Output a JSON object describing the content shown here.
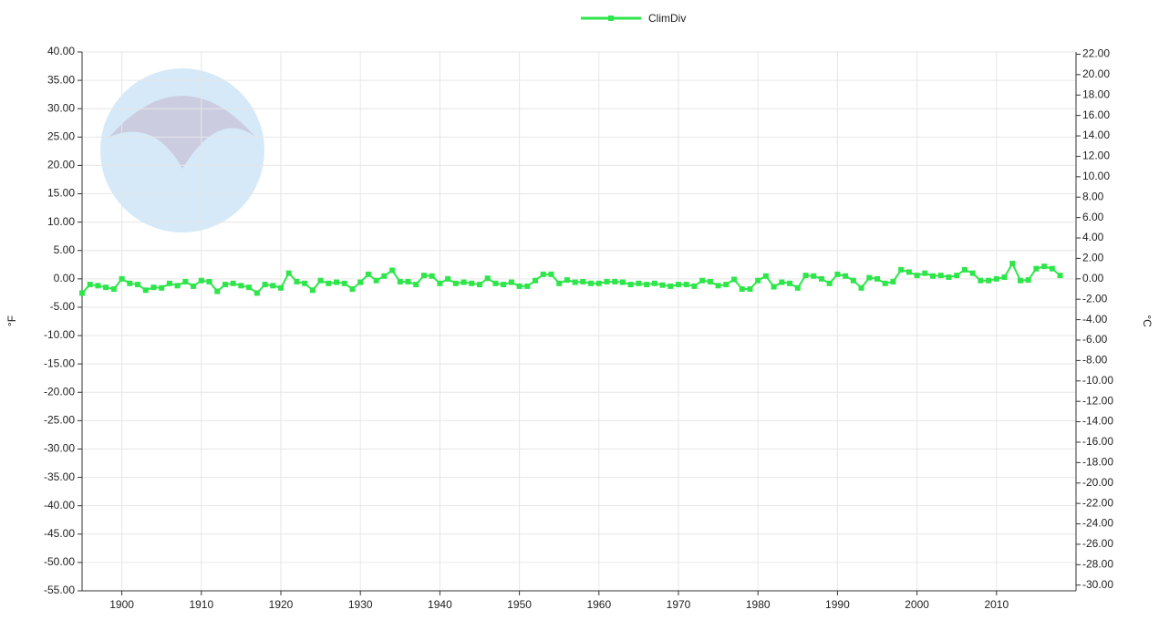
{
  "chart_data": {
    "type": "line",
    "legend_position": "top",
    "grid": true,
    "y_label": "°F",
    "y2_label": "°C",
    "x": [
      1895,
      1896,
      1897,
      1898,
      1899,
      1900,
      1901,
      1902,
      1903,
      1904,
      1905,
      1906,
      1907,
      1908,
      1909,
      1910,
      1911,
      1912,
      1913,
      1914,
      1915,
      1916,
      1917,
      1918,
      1919,
      1920,
      1921,
      1922,
      1923,
      1924,
      1925,
      1926,
      1927,
      1928,
      1929,
      1930,
      1931,
      1932,
      1933,
      1934,
      1935,
      1936,
      1937,
      1938,
      1939,
      1940,
      1941,
      1942,
      1943,
      1944,
      1945,
      1946,
      1947,
      1948,
      1949,
      1950,
      1951,
      1952,
      1953,
      1954,
      1955,
      1956,
      1957,
      1958,
      1959,
      1960,
      1961,
      1962,
      1963,
      1964,
      1965,
      1966,
      1967,
      1968,
      1969,
      1970,
      1971,
      1972,
      1973,
      1974,
      1975,
      1976,
      1977,
      1978,
      1979,
      1980,
      1981,
      1982,
      1983,
      1984,
      1985,
      1986,
      1987,
      1988,
      1989,
      1990,
      1991,
      1992,
      1993,
      1994,
      1995,
      1996,
      1997,
      1998,
      1999,
      2000,
      2001,
      2002,
      2003,
      2004,
      2005,
      2006,
      2007,
      2008,
      2009,
      2010,
      2011,
      2012,
      2013,
      2014,
      2015,
      2016,
      2017,
      2018
    ],
    "series": [
      {
        "name": "ClimDiv",
        "color": "#2ee64a",
        "values": [
          -2.5,
          -1,
          -1.2,
          -1.5,
          -1.8,
          0,
          -0.8,
          -1,
          -2,
          -1.5,
          -1.6,
          -0.8,
          -1.2,
          -0.5,
          -1.3,
          -0.3,
          -0.5,
          -2.2,
          -1,
          -0.8,
          -1.2,
          -1.5,
          -2.5,
          -1,
          -1.2,
          -1.6,
          1,
          -0.5,
          -0.8,
          -2,
          -0.3,
          -0.8,
          -0.6,
          -0.8,
          -1.8,
          -0.6,
          0.8,
          -0.3,
          0.5,
          1.5,
          -0.5,
          -0.5,
          -1,
          0.6,
          0.5,
          -0.8,
          0,
          -0.8,
          -0.6,
          -0.8,
          -1,
          0.1,
          -0.8,
          -1,
          -0.6,
          -1.3,
          -1.3,
          -0.3,
          0.8,
          0.8,
          -0.8,
          -0.2,
          -0.6,
          -0.5,
          -0.8,
          -0.8,
          -0.5,
          -0.5,
          -0.6,
          -1,
          -0.8,
          -1,
          -0.8,
          -1.1,
          -1.3,
          -1,
          -1,
          -1.3,
          -0.3,
          -0.5,
          -1.2,
          -1,
          -0.1,
          -1.8,
          -1.8,
          -0.3,
          0.5,
          -1.4,
          -0.6,
          -0.8,
          -1.6,
          0.6,
          0.5,
          0,
          -0.8,
          0.8,
          0.5,
          -0.3,
          -1.6,
          0.2,
          0,
          -0.8,
          -0.5,
          1.6,
          1.2,
          0.6,
          1,
          0.5,
          0.6,
          0.3,
          0.6,
          1.6,
          1,
          -0.3,
          -0.3,
          0,
          0.3,
          2.7,
          -0.3,
          -0.2,
          1.8,
          2.2,
          1.8,
          0.6
        ]
      }
    ],
    "xlim": [
      1895,
      2020
    ],
    "xticks": [
      1900,
      1910,
      1920,
      1930,
      1940,
      1950,
      1960,
      1970,
      1980,
      1990,
      2000,
      2010
    ],
    "ylim": [
      -55,
      40
    ],
    "yticks": [
      {
        "value": 40,
        "label": "40.00"
      },
      {
        "value": 35,
        "label": "35.00"
      },
      {
        "value": 30,
        "label": "30.00"
      },
      {
        "value": 25,
        "label": "25.00"
      },
      {
        "value": 20,
        "label": "20.00"
      },
      {
        "value": 15,
        "label": "15.00"
      },
      {
        "value": 10,
        "label": "10.00"
      },
      {
        "value": 5,
        "label": "5.00"
      },
      {
        "value": 0,
        "label": "0.00"
      },
      {
        "value": -5,
        "label": "-5.00"
      },
      {
        "value": -10,
        "label": "-10.00"
      },
      {
        "value": -15,
        "label": "-15.00"
      },
      {
        "value": -20,
        "label": "-20.00"
      },
      {
        "value": -25,
        "label": "-25.00"
      },
      {
        "value": -30,
        "label": "-30.00"
      },
      {
        "value": -35,
        "label": "-35.00"
      },
      {
        "value": -40,
        "label": "-40.00"
      },
      {
        "value": -45,
        "label": "-45.00"
      },
      {
        "value": -50,
        "label": "-50.00"
      },
      {
        "value": -55,
        "label": "-55.00"
      }
    ],
    "y2lim": [
      -30.56,
      22.22
    ],
    "y2ticks": [
      {
        "value": 22,
        "label": "22.00"
      },
      {
        "value": 20,
        "label": "20.00"
      },
      {
        "value": 18,
        "label": "18.00"
      },
      {
        "value": 16,
        "label": "16.00"
      },
      {
        "value": 14,
        "label": "14.00"
      },
      {
        "value": 12,
        "label": "12.00"
      },
      {
        "value": 10,
        "label": "10.00"
      },
      {
        "value": 8,
        "label": "8.00"
      },
      {
        "value": 6,
        "label": "6.00"
      },
      {
        "value": 4,
        "label": "4.00"
      },
      {
        "value": 2,
        "label": "2.00"
      },
      {
        "value": 0,
        "label": "0.00"
      },
      {
        "value": -2,
        "label": "-2.00"
      },
      {
        "value": -4,
        "label": "-4.00"
      },
      {
        "value": -6,
        "label": "-6.00"
      },
      {
        "value": -8,
        "label": "-8.00"
      },
      {
        "value": -10,
        "label": "-10.00"
      },
      {
        "value": -12,
        "label": "-12.00"
      },
      {
        "value": -14,
        "label": "-14.00"
      },
      {
        "value": -16,
        "label": "-16.00"
      },
      {
        "value": -18,
        "label": "-18.00"
      },
      {
        "value": -20,
        "label": "-20.00"
      },
      {
        "value": -22,
        "label": "-22.00"
      },
      {
        "value": -24,
        "label": "-24.00"
      },
      {
        "value": -26,
        "label": "-26.00"
      },
      {
        "value": -28,
        "label": "-28.00"
      },
      {
        "value": -30,
        "label": "-30.00"
      }
    ]
  }
}
